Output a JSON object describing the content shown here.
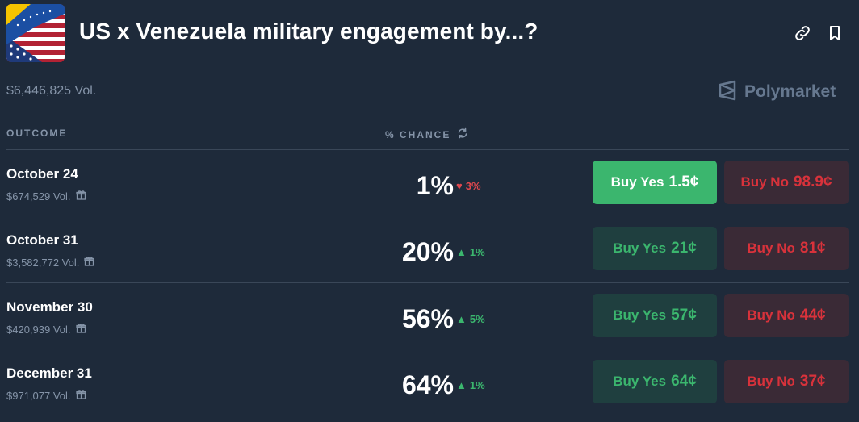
{
  "market": {
    "title": "US x Venezuela military engagement by...?",
    "volume": "$6,446,825 Vol.",
    "brand": "Polymarket"
  },
  "icons": {
    "link": "link-icon",
    "bookmark": "bookmark-icon",
    "refresh": "refresh-icon",
    "gift": "gift-icon"
  },
  "columns": {
    "outcome": "OUTCOME",
    "chance": "% CHANCE"
  },
  "outcomes": [
    {
      "title": "October 24",
      "volume": "$674,529 Vol.",
      "chance": "1%",
      "delta": "3%",
      "direction": "down",
      "yes_label": "Buy Yes",
      "yes_price": "1.5¢",
      "no_label": "Buy No",
      "no_price": "98.9¢"
    },
    {
      "title": "October 31",
      "volume": "$3,582,772 Vol.",
      "chance": "20%",
      "delta": "1%",
      "direction": "up",
      "yes_label": "Buy Yes",
      "yes_price": "21¢",
      "no_label": "Buy No",
      "no_price": "81¢"
    },
    {
      "title": "November 30",
      "volume": "$420,939 Vol.",
      "chance": "56%",
      "delta": "5%",
      "direction": "up",
      "yes_label": "Buy Yes",
      "yes_price": "57¢",
      "no_label": "Buy No",
      "no_price": "44¢"
    },
    {
      "title": "December 31",
      "volume": "$971,077 Vol.",
      "chance": "64%",
      "delta": "1%",
      "direction": "up",
      "yes_label": "Buy Yes",
      "yes_price": "64¢",
      "no_label": "Buy No",
      "no_price": "37¢"
    }
  ],
  "colors": {
    "background": "#1e2a3a",
    "up": "#3bb66e",
    "down": "#e0484e",
    "yes_active": "#3bb66e",
    "yes_bg": "#1f3f3f",
    "no_bg": "#3a2a36"
  }
}
